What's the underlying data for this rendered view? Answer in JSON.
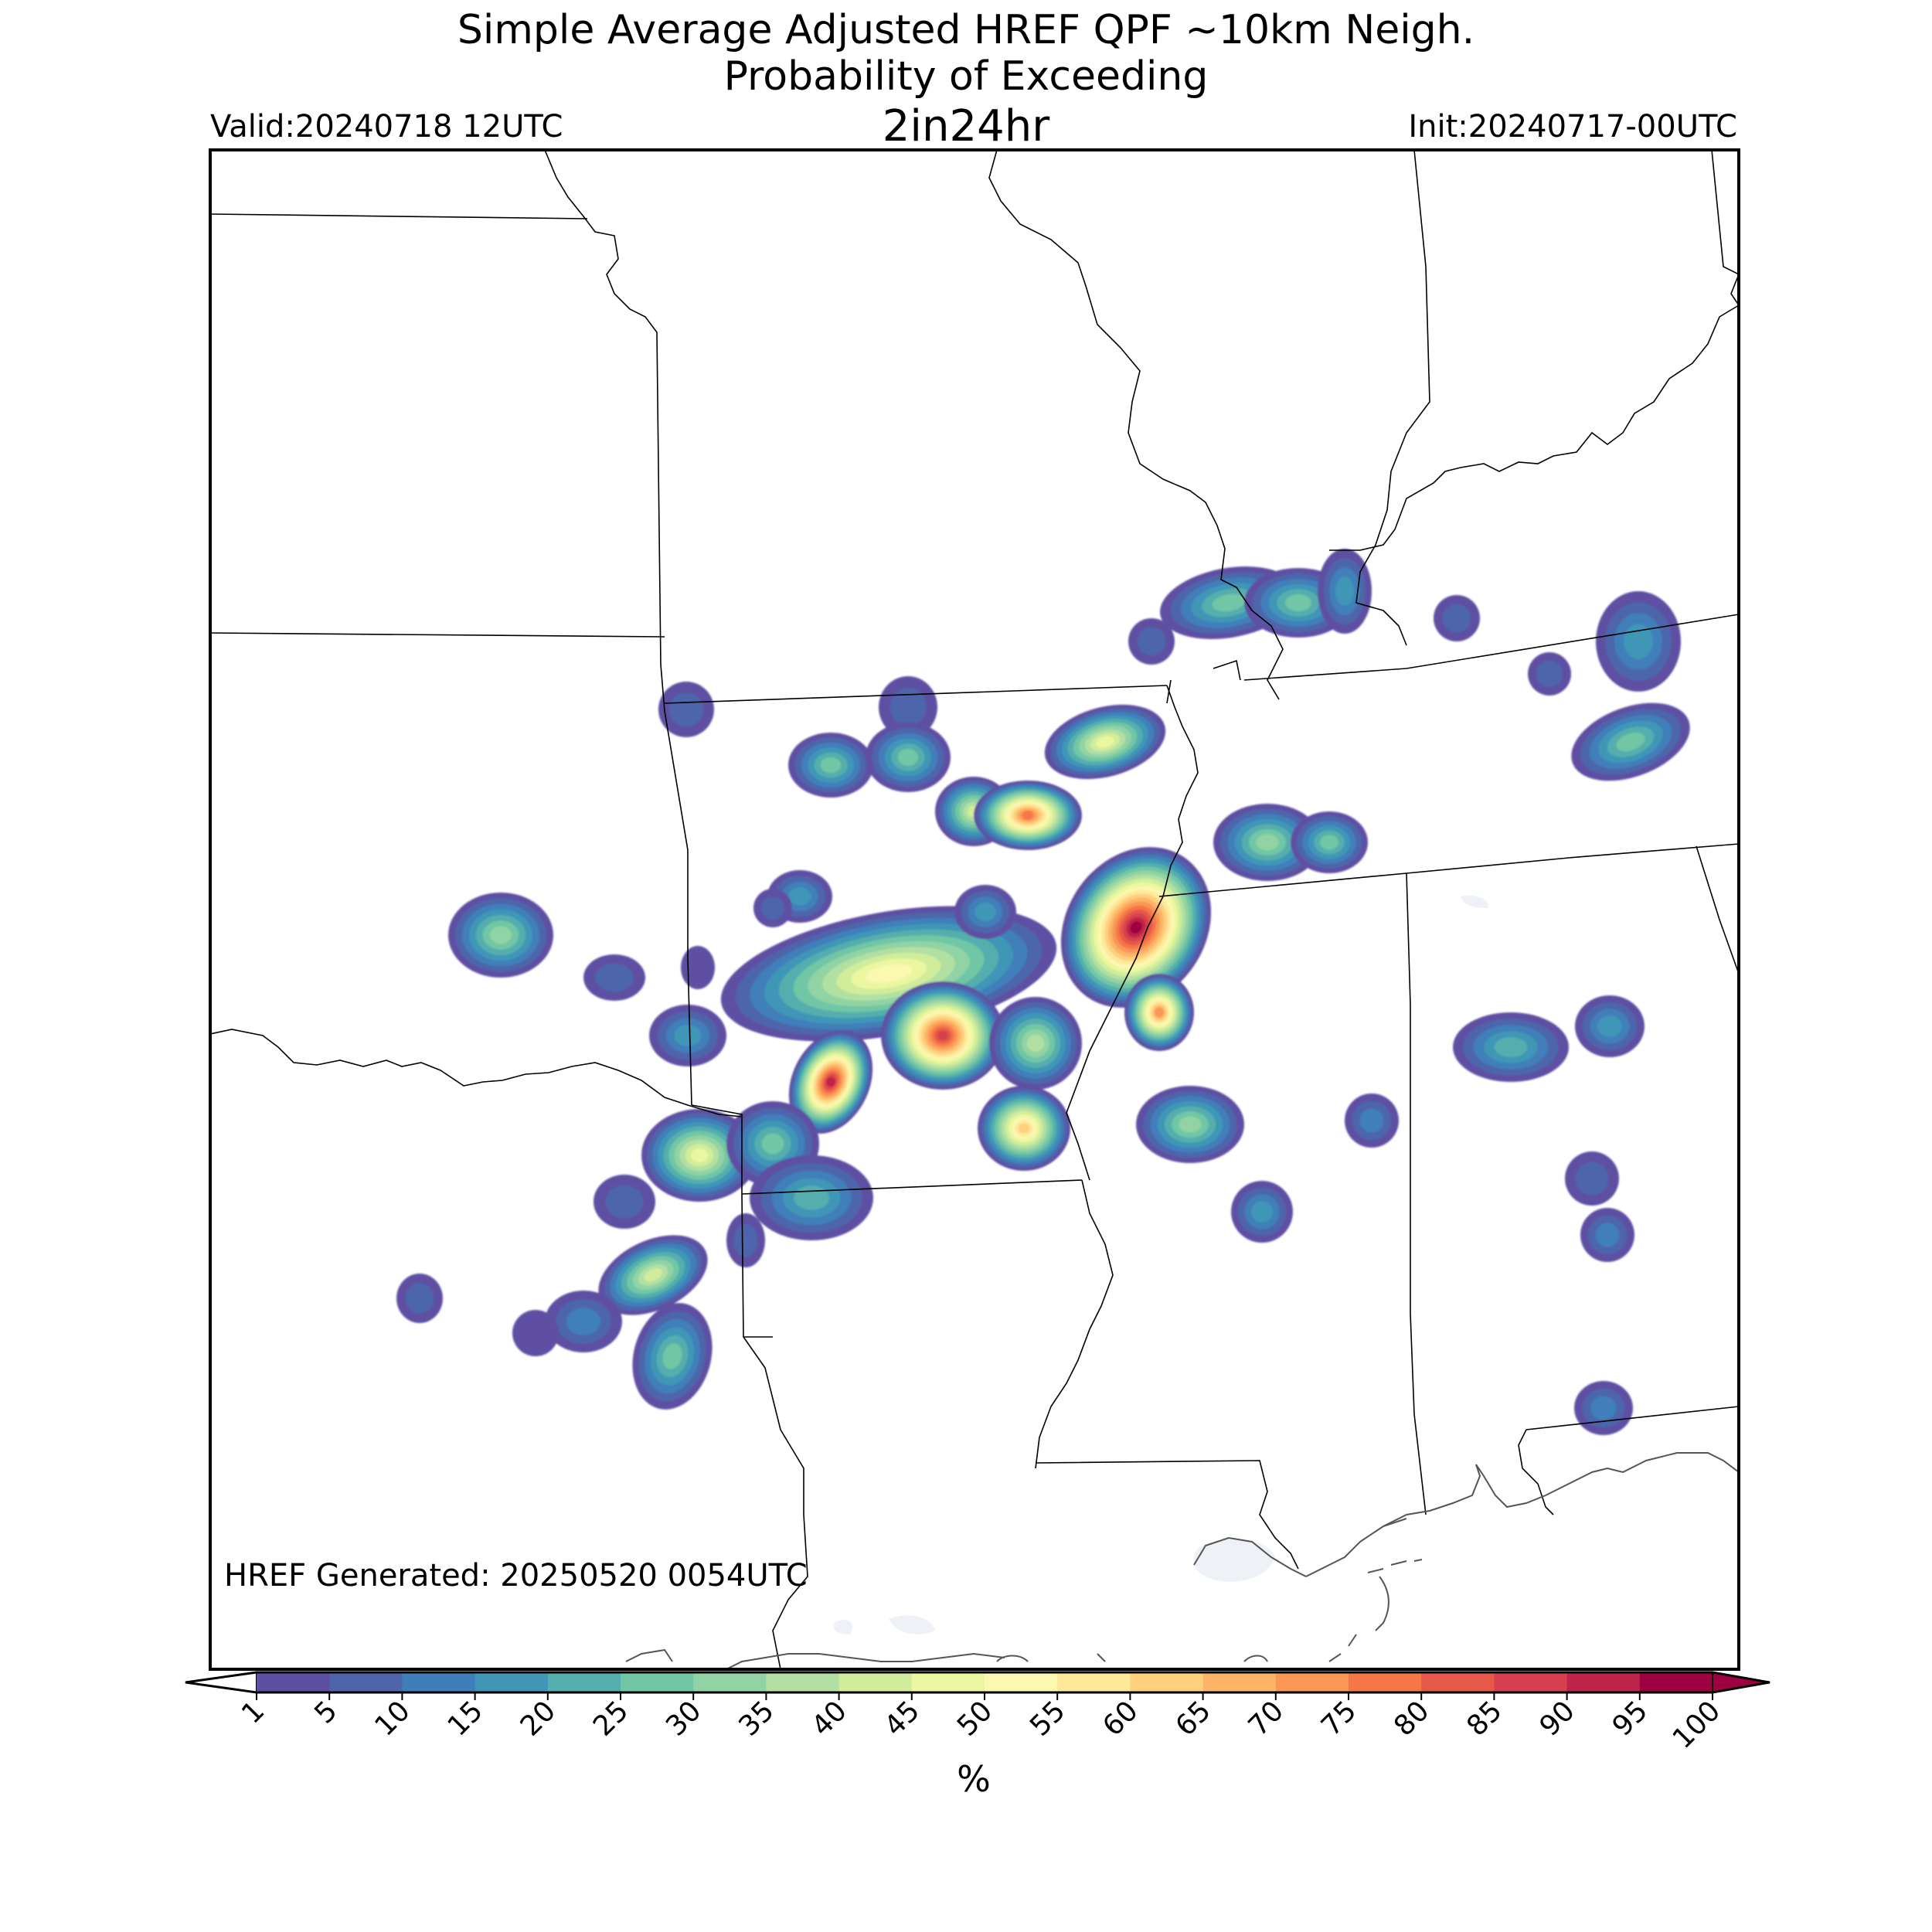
{
  "title": {
    "line1": "Simple Average Adjusted HREF QPF ~10km Neigh.",
    "line2": "Probability of Exceeding",
    "line3": "2in24hr"
  },
  "valid_label": "Valid:20240718 12UTC",
  "init_label": "Init:20240717-00UTC",
  "generated_label": "HREF Generated: 20250520 0054UTC",
  "colorbar": {
    "label": "%",
    "ticks": [
      "1",
      "5",
      "10",
      "15",
      "20",
      "25",
      "30",
      "35",
      "40",
      "45",
      "50",
      "55",
      "60",
      "65",
      "70",
      "75",
      "80",
      "85",
      "90",
      "95",
      "100"
    ],
    "colors": [
      "#5e4fa2",
      "#4e65ab",
      "#3f7fb9",
      "#3f96b7",
      "#54aead",
      "#71c6a5",
      "#91d3a4",
      "#b2e0a2",
      "#d1ed9c",
      "#ebf7a0",
      "#fbf8b0",
      "#fee89a",
      "#fed07e",
      "#fdb466",
      "#fa9656",
      "#f57748",
      "#e65847",
      "#d6404e",
      "#be2449",
      "#9e0142"
    ],
    "extend": "both"
  },
  "colors": {
    "state_border": "#000000",
    "coastline": "#444444",
    "water": "#f0f3f8"
  }
}
